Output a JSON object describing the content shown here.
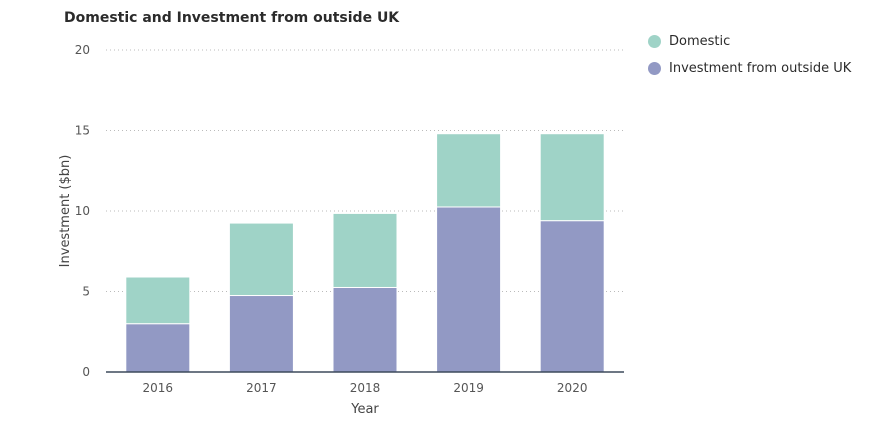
{
  "chart_data": {
    "type": "bar",
    "stacked": true,
    "title": "Domestic and Investment from outside UK",
    "xlabel": "Year",
    "ylabel": "Investment ($bn)",
    "ylim": [
      0,
      20
    ],
    "yticks": [
      0,
      5,
      10,
      15,
      20
    ],
    "grid": true,
    "legend_position": "top-right",
    "categories": [
      "2016",
      "2017",
      "2018",
      "2019",
      "2020"
    ],
    "series": [
      {
        "name": "Investment from outside UK",
        "color": "#9299c4",
        "values": [
          3.0,
          4.75,
          5.25,
          10.25,
          9.4
        ]
      },
      {
        "name": "Domestic",
        "color": "#9fd3c7",
        "values": [
          2.9,
          4.5,
          4.6,
          4.55,
          5.4
        ]
      }
    ]
  }
}
